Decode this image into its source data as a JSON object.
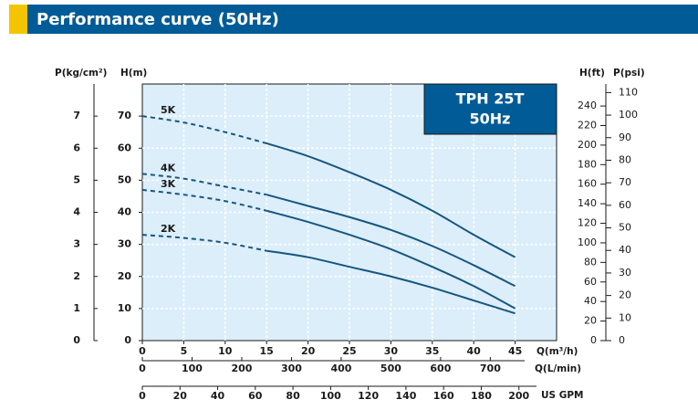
{
  "chart_data": {
    "type": "line",
    "title": "Performance curve (50Hz)",
    "model": "TPH 25T",
    "frequency": "50Hz",
    "xlabel": "Q(m³/h)",
    "xlim": [
      0,
      50
    ],
    "xticks": [
      0,
      5,
      10,
      15,
      20,
      25,
      30,
      35,
      40,
      45
    ],
    "x2label": "Q(L/min)",
    "x2lim": [
      0,
      833.3
    ],
    "x2ticks": [
      0,
      100,
      200,
      300,
      400,
      500,
      600,
      700
    ],
    "x3label": "US GPM",
    "x3lim": [
      0,
      220
    ],
    "x3ticks": [
      0,
      20,
      40,
      60,
      80,
      100,
      120,
      140,
      160,
      180,
      200
    ],
    "ylabel": "H(m)",
    "ylim": [
      0,
      80
    ],
    "yticks": [
      0,
      10,
      20,
      30,
      40,
      50,
      60,
      70
    ],
    "y_p_label": "P(kg/cm²)",
    "y_p_lim": [
      0,
      8
    ],
    "y_p_ticks": [
      0,
      1,
      2,
      3,
      4,
      5,
      6,
      7
    ],
    "y2label": "H(ft)",
    "y2lim": [
      0,
      262.5
    ],
    "y2ticks": [
      0,
      20,
      40,
      60,
      80,
      100,
      120,
      140,
      160,
      180,
      200,
      220,
      240
    ],
    "y3label": "P(psi)",
    "y3lim": [
      0,
      113.8
    ],
    "y3ticks": [
      0,
      10,
      20,
      30,
      40,
      50,
      60,
      70,
      80,
      90,
      100,
      110
    ],
    "grid": true,
    "dashed_below_x": 15,
    "x": [
      0,
      5,
      10,
      15,
      20,
      25,
      30,
      35,
      40,
      45
    ],
    "series": [
      {
        "name": "5K",
        "color": "#17567f",
        "values": [
          70,
          68,
          65,
          61.5,
          57.5,
          52.5,
          47,
          40.5,
          33,
          26
        ]
      },
      {
        "name": "4K",
        "color": "#17567f",
        "values": [
          52,
          50.5,
          48,
          45.5,
          42,
          38.5,
          34.5,
          29.5,
          23.5,
          17
        ]
      },
      {
        "name": "3K",
        "color": "#17567f",
        "values": [
          47,
          45.5,
          43.5,
          40.5,
          37,
          33,
          28.5,
          23,
          17,
          10
        ]
      },
      {
        "name": "2K",
        "color": "#17567f",
        "values": [
          33,
          32,
          30.5,
          28,
          26,
          23,
          20,
          16.5,
          12.5,
          8.5
        ]
      }
    ]
  }
}
